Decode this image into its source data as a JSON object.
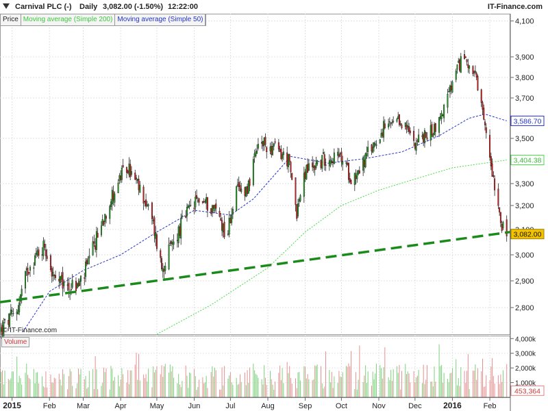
{
  "header": {
    "instrument": "Carnival PLC (-)",
    "period": "Daily",
    "last": "3,082.00 (-1.50%)",
    "time": "12:22:00",
    "brand": "IT-Finance.com"
  },
  "legend": {
    "price": "Price",
    "ma200": "Moving average (Simple 200)",
    "ma50": "Moving average (Simple 50)"
  },
  "credit": "© IT-Finance.com",
  "volume_label": "Volume",
  "colors": {
    "up": "#1e9e1e",
    "down": "#d01c1c",
    "ma50": "#2233cc",
    "ma200": "#44dd44",
    "trend": "#1a8a1a",
    "vol_up": "#7dd07d",
    "vol_down": "#e89090",
    "last_box": "#f2c200"
  },
  "chart_data": [
    {
      "type": "candlestick",
      "title": "Carnival PLC (-)",
      "frequency": "Daily",
      "x_ticks": [
        "2015",
        "Feb",
        "Mar",
        "Apr",
        "May",
        "Jun",
        "Jul",
        "Aug",
        "Sep",
        "Oct",
        "Nov",
        "Dec",
        "2016",
        "Feb"
      ],
      "y_ticks": [
        "4,100",
        "3,900",
        "3,800",
        "3,700",
        "3,500",
        "3,300",
        "3,200",
        "3,100",
        "3,000",
        "2,900",
        "2,800"
      ],
      "ylim": [
        2690,
        4110
      ],
      "xlim": [
        "2014-12-22",
        "2016-02-18"
      ],
      "price_path": [
        [
          "2014-12-22",
          2700
        ],
        [
          "2015-01-05",
          2790
        ],
        [
          "2015-01-15",
          2960
        ],
        [
          "2015-01-28",
          3040
        ],
        [
          "2015-02-05",
          2900
        ],
        [
          "2015-02-15",
          2880
        ],
        [
          "2015-02-25",
          2880
        ],
        [
          "2015-03-05",
          2960
        ],
        [
          "2015-03-20",
          3180
        ],
        [
          "2015-04-01",
          3330
        ],
        [
          "2015-04-07",
          3370
        ],
        [
          "2015-04-20",
          3240
        ],
        [
          "2015-04-28",
          3120
        ],
        [
          "2015-05-05",
          2950
        ],
        [
          "2015-05-15",
          3050
        ],
        [
          "2015-05-25",
          3160
        ],
        [
          "2015-06-05",
          3230
        ],
        [
          "2015-06-20",
          3180
        ],
        [
          "2015-06-28",
          3070
        ],
        [
          "2015-07-05",
          3260
        ],
        [
          "2015-07-15",
          3280
        ],
        [
          "2015-07-25",
          3480
        ],
        [
          "2015-08-08",
          3450
        ],
        [
          "2015-08-18",
          3400
        ],
        [
          "2015-08-25",
          3180
        ],
        [
          "2015-09-02",
          3360
        ],
        [
          "2015-09-20",
          3420
        ],
        [
          "2015-10-01",
          3410
        ],
        [
          "2015-10-10",
          3320
        ],
        [
          "2015-10-20",
          3400
        ],
        [
          "2015-11-05",
          3550
        ],
        [
          "2015-11-20",
          3580
        ],
        [
          "2015-12-01",
          3490
        ],
        [
          "2015-12-10",
          3510
        ],
        [
          "2015-12-20",
          3570
        ],
        [
          "2015-12-31",
          3750
        ],
        [
          "2016-01-08",
          3880
        ],
        [
          "2016-01-12",
          3900
        ],
        [
          "2016-01-20",
          3800
        ],
        [
          "2016-01-28",
          3550
        ],
        [
          "2016-02-05",
          3300
        ],
        [
          "2016-02-12",
          3100
        ],
        [
          "2016-02-15",
          3082
        ]
      ],
      "ma50_path": [
        [
          "2015-01-10",
          2700
        ],
        [
          "2015-02-01",
          2860
        ],
        [
          "2015-03-01",
          2940
        ],
        [
          "2015-04-01",
          3000
        ],
        [
          "2015-05-01",
          3090
        ],
        [
          "2015-06-01",
          3180
        ],
        [
          "2015-07-01",
          3160
        ],
        [
          "2015-07-20",
          3230
        ],
        [
          "2015-08-20",
          3420
        ],
        [
          "2015-09-20",
          3390
        ],
        [
          "2015-10-20",
          3410
        ],
        [
          "2015-11-20",
          3440
        ],
        [
          "2015-12-20",
          3510
        ],
        [
          "2016-01-15",
          3600
        ],
        [
          "2016-01-28",
          3620
        ],
        [
          "2016-02-15",
          3586.7
        ]
      ],
      "ma200_path": [
        [
          "2015-05-01",
          2690
        ],
        [
          "2015-06-15",
          2810
        ],
        [
          "2015-08-01",
          2950
        ],
        [
          "2015-09-01",
          3090
        ],
        [
          "2015-10-01",
          3200
        ],
        [
          "2015-11-01",
          3270
        ],
        [
          "2015-12-01",
          3320
        ],
        [
          "2016-01-01",
          3370
        ],
        [
          "2016-02-15",
          3404.38
        ]
      ],
      "trendline": [
        [
          "2014-12-22",
          2820
        ],
        [
          "2016-02-18",
          3090
        ]
      ],
      "labels": {
        "last": "3,082.00",
        "ma50": "3,586.70",
        "ma200": "3,404.38"
      },
      "series": [
        {
          "name": "Price"
        },
        {
          "name": "Moving average (Simple 200)"
        },
        {
          "name": "Moving average (Simple 50)"
        }
      ]
    },
    {
      "type": "bar",
      "title": "Volume",
      "y_ticks": [
        "4,000k",
        "3,000k",
        "2,000k",
        "1,000k"
      ],
      "ylim": [
        0,
        4200
      ],
      "last_label": "453,364",
      "last_value": 453.364
    }
  ]
}
